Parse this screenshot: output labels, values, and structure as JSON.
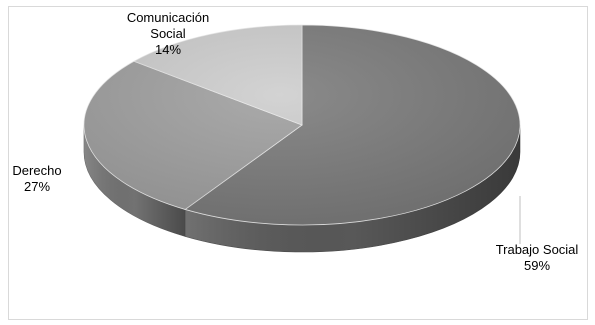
{
  "chart_data": {
    "type": "pie",
    "style": "3d",
    "categories": [
      "Trabajo Social",
      "Derecho",
      "Comunicación Social"
    ],
    "values": [
      59,
      27,
      14
    ],
    "value_labels": [
      "59%",
      "27%",
      "14%"
    ],
    "label_lines": [
      [
        "Trabajo Social",
        "59%"
      ],
      [
        "Derecho",
        "27%"
      ],
      [
        "Comunicación",
        "Social",
        "14%"
      ]
    ],
    "colors": [
      "#7a7a7a",
      "#9f9f9f",
      "#cdcdcd"
    ],
    "legend": "none"
  }
}
